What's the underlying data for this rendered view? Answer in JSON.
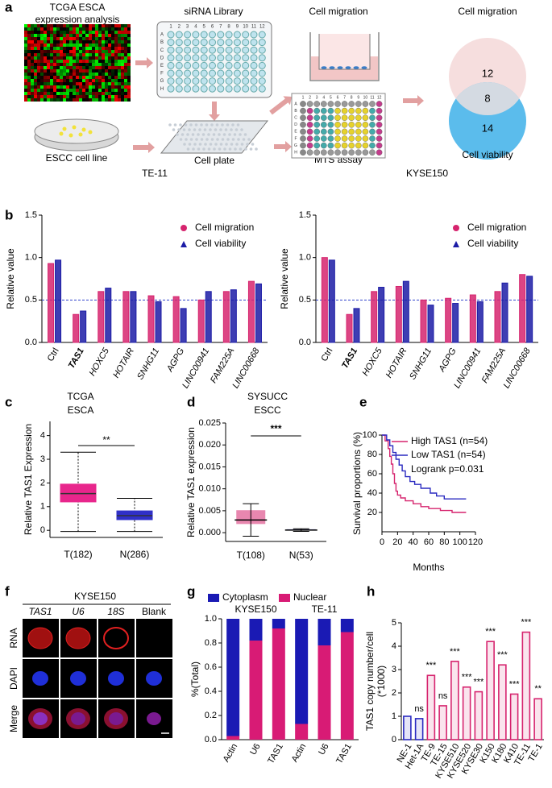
{
  "panel_labels": [
    "a",
    "b",
    "c",
    "d",
    "e",
    "f",
    "g",
    "h"
  ],
  "workflow": {
    "tcga_title": [
      "TCGA ESCA",
      "expression analysis"
    ],
    "sirna_library": "siRNA Library",
    "cell_migration": "Cell migration",
    "venn_title": "Cell migration",
    "venn_counts": [
      12,
      8,
      14
    ],
    "venn_bottom": "Cell viability",
    "escc_cell_line": "ESCC cell line",
    "cell_plate": "Cell plate",
    "mts_assay": "MTS assay",
    "plate_rows": [
      "A",
      "B",
      "C",
      "D",
      "E",
      "F",
      "G",
      "H"
    ],
    "plate_cols": [
      1,
      2,
      3,
      4,
      5,
      6,
      7,
      8,
      9,
      10,
      11,
      12
    ]
  },
  "microscopy": {
    "title": "KYSE150",
    "columns": [
      "TAS1",
      "U6",
      "18S",
      "Blank"
    ],
    "rows": [
      "RNA",
      "DAPI",
      "Merge"
    ]
  },
  "chart_data": [
    {
      "type": "bar",
      "title": "TE-11",
      "ylabel": "Relative value",
      "categories": [
        "Ctrl",
        "TAS1",
        "HOXC5",
        "HOTAIR",
        "SNHG11",
        "AGPG",
        "LINC00941",
        "FAM225A",
        "LINC00668"
      ],
      "series": [
        {
          "name": "Cell migration",
          "color": "#d6246e",
          "marker": "circle",
          "values": [
            0.93,
            0.33,
            0.6,
            0.6,
            0.55,
            0.54,
            0.5,
            0.6,
            0.72
          ]
        },
        {
          "name": "Cell viability",
          "color": "#1c1ca6",
          "marker": "triangle",
          "values": [
            0.97,
            0.37,
            0.64,
            0.6,
            0.48,
            0.4,
            0.6,
            0.62,
            0.69
          ]
        }
      ],
      "ylim": [
        0,
        1.5
      ],
      "yticks": [
        {
          "value": 0,
          "label": "0.0"
        },
        0.5,
        {
          "value": 1,
          "label": "1.0"
        },
        {
          "value": 1.5,
          "label": "1.5"
        }
      ],
      "hline": 0.5,
      "legend": "upper right"
    },
    {
      "type": "bar",
      "title": "KYSE150",
      "ylabel": "Relative value",
      "categories": [
        "Ctrl",
        "TAS1",
        "HOXC5",
        "HOTAIR",
        "SNHG11",
        "AGPG",
        "LINC00941",
        "FAM225A",
        "LINC00668"
      ],
      "series": [
        {
          "name": "Cell migration",
          "color": "#d6246e",
          "marker": "circle",
          "values": [
            1.0,
            0.33,
            0.6,
            0.66,
            0.5,
            0.52,
            0.56,
            0.6,
            0.8
          ]
        },
        {
          "name": "Cell viability",
          "color": "#1c1ca6",
          "marker": "triangle",
          "values": [
            0.97,
            0.4,
            0.65,
            0.72,
            0.44,
            0.46,
            0.48,
            0.7,
            0.78
          ]
        }
      ],
      "ylim": [
        0,
        1.5
      ],
      "yticks": [
        {
          "value": 0,
          "label": "0.0"
        },
        0.5,
        {
          "value": 1,
          "label": "1.0"
        },
        {
          "value": 1.5,
          "label": "1.5"
        }
      ],
      "hline": 0.5,
      "legend": "upper right"
    },
    {
      "type": "box",
      "title": [
        "TCGA",
        "ESCA"
      ],
      "ylabel": "Relative TAS1 Expression",
      "categories": [
        "T(182)",
        "N(286)"
      ],
      "colors": [
        "#e8268c",
        "#3030c8"
      ],
      "boxes": [
        {
          "whisker_low": -0.05,
          "q1": 1.2,
          "median": 1.55,
          "q3": 1.95,
          "whisker_high": 3.3
        },
        {
          "whisker_low": -0.05,
          "q1": 0.45,
          "median": 0.62,
          "q3": 0.82,
          "whisker_high": 1.35
        }
      ],
      "ylim": [
        -0.3,
        4.6
      ],
      "yticks": [
        0,
        1,
        2,
        3,
        4
      ],
      "significance": "**"
    },
    {
      "type": "dot",
      "title": [
        "SYSUCC",
        "ESCC"
      ],
      "ylabel": "Relative TAS1 expression",
      "categories": [
        "T(108)",
        "N(53)"
      ],
      "colors": [
        "#d6246e",
        "#2a2ac0"
      ],
      "means": [
        0.0029,
        0.0006
      ],
      "sd": [
        0.0037,
        0.0003
      ],
      "ylim": [
        -0.002,
        0.025
      ],
      "yticks": [
        {
          "value": 0,
          "label": "0.000"
        },
        0.005,
        {
          "value": 0.01,
          "label": "0.010"
        },
        0.015,
        {
          "value": 0.02,
          "label": "0.020"
        },
        0.025
      ],
      "significance": "***"
    },
    {
      "type": "survival",
      "xlabel": "Months",
      "ylabel": "Survival proportions (%)",
      "series": [
        {
          "name": "High TAS1 (n=54)",
          "color": "#d6246e",
          "x": [
            0,
            4,
            4,
            8,
            8,
            10,
            10,
            12,
            12,
            14,
            14,
            16,
            16,
            18,
            18,
            20,
            20,
            24,
            24,
            30,
            30,
            40,
            40,
            50,
            50,
            60,
            60,
            75,
            75,
            90,
            90,
            108
          ],
          "values": [
            100,
            100,
            94,
            94,
            86,
            86,
            78,
            78,
            70,
            70,
            60,
            60,
            50,
            50,
            42,
            42,
            38,
            38,
            35,
            35,
            32,
            32,
            29,
            29,
            26,
            26,
            24,
            24,
            22,
            22,
            20,
            20
          ]
        },
        {
          "name": "Low  TAS1 (n=54)",
          "color": "#2a2ac0",
          "x": [
            0,
            6,
            6,
            10,
            10,
            14,
            14,
            18,
            18,
            22,
            22,
            26,
            26,
            30,
            30,
            36,
            36,
            42,
            42,
            50,
            50,
            62,
            62,
            70,
            70,
            80,
            80,
            108
          ],
          "values": [
            100,
            100,
            95,
            95,
            89,
            89,
            82,
            82,
            75,
            75,
            69,
            69,
            63,
            63,
            57,
            57,
            52,
            52,
            49,
            49,
            45,
            45,
            40,
            40,
            37,
            37,
            34,
            34
          ]
        }
      ],
      "annotation": "Logrank p=0.031",
      "xlim": [
        0,
        120
      ],
      "xticks": [
        0,
        20,
        40,
        60,
        80,
        100,
        120
      ],
      "ylim": [
        0,
        100
      ],
      "yticks": [
        20,
        40,
        60,
        80,
        100
      ]
    },
    {
      "type": "stacked_bar",
      "ylabel": "%(Total)",
      "series": [
        {
          "name": "Cytoplasm",
          "color": "#1a1ab4"
        },
        {
          "name": "Nuclear",
          "color": "#d81b75"
        }
      ],
      "groups": [
        {
          "name": "KYSE150",
          "categories": [
            "Actin",
            "U6",
            "TAS1"
          ],
          "values": [
            [
              0.97,
              0.18,
              0.08
            ],
            [
              0.03,
              0.82,
              0.92
            ]
          ]
        },
        {
          "name": "TE-11",
          "categories": [
            "Actin",
            "U6",
            "TAS1"
          ],
          "values": [
            [
              0.87,
              0.22,
              0.11
            ],
            [
              0.13,
              0.78,
              0.89
            ]
          ]
        }
      ],
      "ylim": [
        0,
        1
      ],
      "yticks": [
        {
          "value": 0,
          "label": "0.0"
        },
        0.2,
        0.4,
        0.6,
        0.8,
        {
          "value": 1,
          "label": "1.0"
        }
      ]
    },
    {
      "type": "bar",
      "ylabel": [
        "TAS1 copy number/cell",
        "(*1000)"
      ],
      "categories": [
        "NE-1",
        "Het-1A",
        "TE-9",
        "TE-15",
        "KYSE510",
        "KYSE520",
        "KYSE30",
        "K150",
        "K180",
        "K410",
        "TE-11",
        "TE-1"
      ],
      "values": [
        1.0,
        0.9,
        2.75,
        1.45,
        3.35,
        2.25,
        2.05,
        4.2,
        3.2,
        1.95,
        4.6,
        1.75
      ],
      "colors": [
        "#2a2ac0",
        "#2a2ac0",
        "#d6246e",
        "#d6246e",
        "#d6246e",
        "#d6246e",
        "#d6246e",
        "#d6246e",
        "#d6246e",
        "#d6246e",
        "#d6246e",
        "#d6246e"
      ],
      "significance": [
        null,
        "ns",
        "***",
        "ns",
        "***",
        "***",
        "***",
        "***",
        "***",
        "***",
        "***",
        "**"
      ],
      "ylim": [
        0,
        5
      ],
      "yticks": [
        0,
        1,
        2,
        3,
        4,
        5
      ]
    }
  ]
}
